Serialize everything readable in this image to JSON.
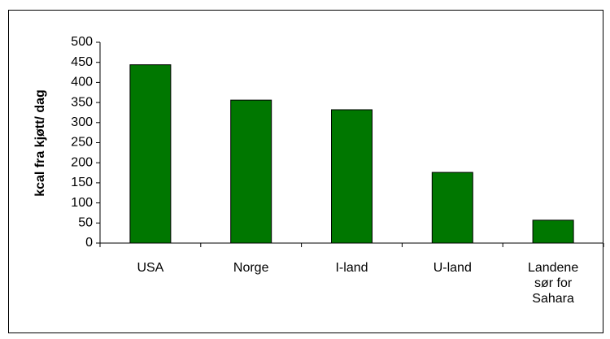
{
  "chart_data": {
    "type": "bar",
    "y_label": "kcal fra kjøtt/ dag",
    "categories": [
      "USA",
      "Norge",
      "I-land",
      "U-land",
      "Landene sør for Sahara"
    ],
    "values": [
      444,
      356,
      332,
      176,
      57
    ],
    "color": "#007700",
    "ylim": [
      0,
      500
    ],
    "yticks": [
      0,
      50,
      100,
      150,
      200,
      250,
      300,
      350,
      400,
      450,
      500
    ],
    "grid": false
  }
}
